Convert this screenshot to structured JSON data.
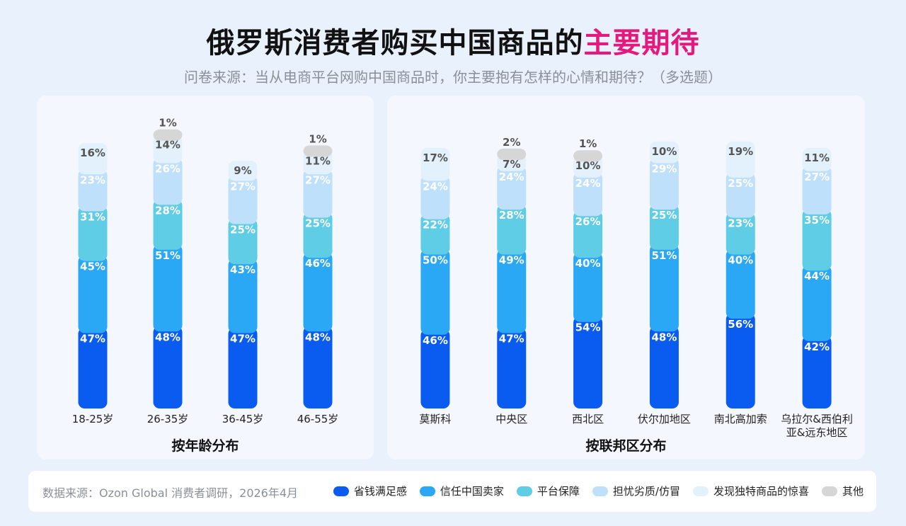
{
  "title": {
    "main": "俄罗斯消费者购买中国商品的",
    "highlight": "主要期待"
  },
  "subtitle": "问卷来源：当从电商平台网购中国商品时，你主要抱有怎样的心情和期待？（多选题）",
  "source": "数据来源：Ozon Global 消费者调研，2026年4月",
  "colors": {
    "省钱满足感": "#0a5cf0",
    "信任中国卖家": "#2aa8f5",
    "平台保障": "#5fcde6",
    "担忧劣质/仿冒": "#bfe0fb",
    "发现独特商品的惊喜": "#e3f1fd",
    "其他": "#d6d6d6"
  },
  "legend": [
    "省钱满足感",
    "信任中国卖家",
    "平台保障",
    "担忧劣质/仿冒",
    "发现独特商品的惊喜",
    "其他"
  ],
  "chart_data": [
    {
      "type": "bar",
      "stacked": true,
      "title": "按年龄分布",
      "categories": [
        "18-25岁",
        "26-35岁",
        "36-45岁",
        "46-55岁"
      ],
      "series": [
        {
          "name": "省钱满足感",
          "values": [
            47,
            48,
            47,
            48
          ]
        },
        {
          "name": "信任中国卖家",
          "values": [
            45,
            51,
            43,
            46
          ]
        },
        {
          "name": "平台保障",
          "values": [
            31,
            28,
            25,
            25
          ]
        },
        {
          "name": "担忧劣质/仿冒",
          "values": [
            23,
            26,
            27,
            27
          ]
        },
        {
          "name": "发现独特商品的惊喜",
          "values": [
            16,
            14,
            9,
            11
          ]
        },
        {
          "name": "其他",
          "values": [
            0,
            1,
            0,
            1
          ]
        }
      ]
    },
    {
      "type": "bar",
      "stacked": true,
      "title": "按联邦区分布",
      "categories": [
        "莫斯科",
        "中央区",
        "西北区",
        "伏尔加地区",
        "南北高加索",
        "乌拉尔&西伯利亚&远东地区"
      ],
      "category_lines": [
        [
          "莫斯科"
        ],
        [
          "中央区"
        ],
        [
          "西北区"
        ],
        [
          "伏尔加地区"
        ],
        [
          "南北高加索"
        ],
        [
          "乌拉尔&西伯利",
          "亚&远东地区"
        ]
      ],
      "series": [
        {
          "name": "省钱满足感",
          "values": [
            46,
            47,
            54,
            48,
            56,
            42
          ]
        },
        {
          "name": "信任中国卖家",
          "values": [
            50,
            49,
            40,
            51,
            40,
            44
          ]
        },
        {
          "name": "平台保障",
          "values": [
            22,
            28,
            26,
            25,
            23,
            35
          ]
        },
        {
          "name": "担忧劣质/仿冒",
          "values": [
            24,
            24,
            24,
            29,
            25,
            27
          ]
        },
        {
          "name": "发现独特商品的惊喜",
          "values": [
            17,
            7,
            10,
            10,
            19,
            11
          ]
        },
        {
          "name": "其他",
          "values": [
            0,
            2,
            1,
            0,
            0,
            0
          ]
        }
      ]
    }
  ]
}
